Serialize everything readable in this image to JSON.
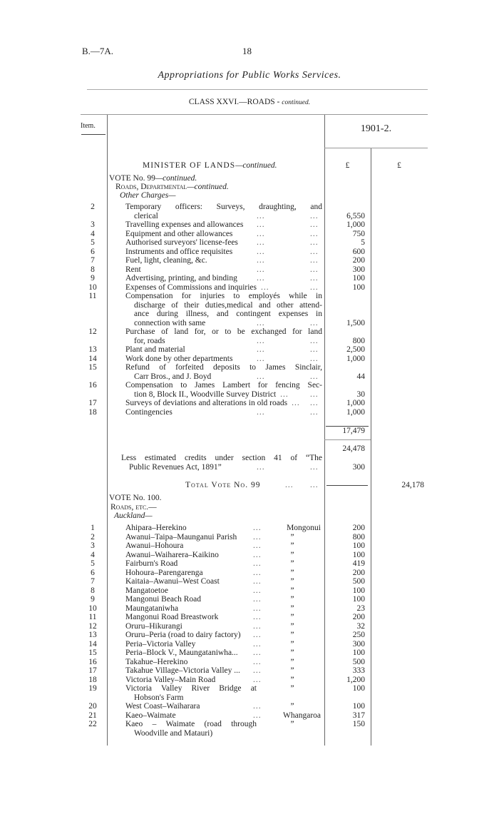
{
  "header": {
    "ref": "B.—7A.",
    "page_number": "18",
    "title": "Appropriations for Public Works Services.",
    "class_heading": "CLASS XXVI.—ROADS",
    "class_continued": "continued."
  },
  "table_header": {
    "item_label": "Item.",
    "year": "1901-2.",
    "currency_1": "£",
    "currency_2": "£"
  },
  "section": {
    "minister": "MINISTER OF LANDS",
    "minister_continued": "—continued."
  },
  "vote99": {
    "title": "VOTE No. 99",
    "title_continued": "—continued.",
    "subhead": "Roads, Departmental",
    "subhead_continued": "—continued.",
    "group": "Other Charges—",
    "items": [
      {
        "item": "2",
        "lines": [
          "Temporary officers: Surveys, draughting, and",
          "clerical"
        ],
        "amount": "6,550"
      },
      {
        "item": "3",
        "lines": [
          "Travelling expenses and allowances"
        ],
        "amount": "1,000"
      },
      {
        "item": "4",
        "lines": [
          "Equipment and other allowances"
        ],
        "amount": "750"
      },
      {
        "item": "5",
        "lines": [
          "Authorised surveyors' license-fees"
        ],
        "amount": "5"
      },
      {
        "item": "6",
        "lines": [
          "Instruments and office requisites"
        ],
        "amount": "600"
      },
      {
        "item": "7",
        "lines": [
          "Fuel, light, cleaning, &c."
        ],
        "amount": "200"
      },
      {
        "item": "8",
        "lines": [
          "Rent"
        ],
        "amount": "300"
      },
      {
        "item": "9",
        "lines": [
          "Advertising, printing, and binding"
        ],
        "amount": "100"
      },
      {
        "item": "10",
        "lines": [
          "Expenses of Commissions and inquiries"
        ],
        "amount": "100"
      },
      {
        "item": "11",
        "lines": [
          "Compensation for injuries to employés while in",
          "discharge of their duties,medical and other attend-",
          "ance during illness, and contingent expenses in",
          "connection with same"
        ],
        "amount": "1,500"
      },
      {
        "item": "12",
        "lines": [
          "Purchase of land for, or to be exchanged for land",
          "for, roads"
        ],
        "amount": "800"
      },
      {
        "item": "13",
        "lines": [
          "Plant and material"
        ],
        "amount": "2,500"
      },
      {
        "item": "14",
        "lines": [
          "Work done by other departments"
        ],
        "amount": "1,000"
      },
      {
        "item": "15",
        "lines": [
          "Refund of forfeited deposits to James Sinclair,",
          "Carr Bros., and J. Boyd"
        ],
        "amount": "44"
      },
      {
        "item": "16",
        "lines": [
          "Compensation to James Lambert for fencing Sec-",
          "tion 8, Block II., Woodville Survey District"
        ],
        "amount": "30"
      },
      {
        "item": "17",
        "lines": [
          "Surveys of deviations and alterations in old roads"
        ],
        "amount": "1,000"
      },
      {
        "item": "18",
        "lines": [
          "Contingencies"
        ],
        "amount": "1,000"
      }
    ],
    "subtotal": "17,479",
    "gross": "24,478",
    "credits_lines": [
      "Less estimated credits under section 41 of “The",
      "Public Revenues Act, 1891”"
    ],
    "credits_amount": "300",
    "total_label": "Total Vote No. 99",
    "total_amount": "24,178"
  },
  "vote100": {
    "title": "VOTE No. 100.",
    "subhead": "Roads, etc.—",
    "group": "Auckland—",
    "items": [
      {
        "item": "1",
        "lines": [
          "Ahipara–Herekino"
        ],
        "district": "Mongonui",
        "amount": "200"
      },
      {
        "item": "2",
        "lines": [
          "Awanui–Taipa–Maunganui Parish"
        ],
        "district": "”",
        "amount": "800"
      },
      {
        "item": "3",
        "lines": [
          "Awanui–Hohoura"
        ],
        "district": "”",
        "amount": "100"
      },
      {
        "item": "4",
        "lines": [
          "Awanui–Waiharera–Kaikino"
        ],
        "district": "”",
        "amount": "100"
      },
      {
        "item": "5",
        "lines": [
          "Fairburn's Road"
        ],
        "district": "”",
        "amount": "419"
      },
      {
        "item": "6",
        "lines": [
          "Hohoura–Parengarenga"
        ],
        "district": "”",
        "amount": "200"
      },
      {
        "item": "7",
        "lines": [
          "Kaitaia–Awanui–West Coast"
        ],
        "district": "”",
        "amount": "500"
      },
      {
        "item": "8",
        "lines": [
          "Mangatoetoe"
        ],
        "district": "”",
        "amount": "100"
      },
      {
        "item": "9",
        "lines": [
          "Mangonui Beach Road"
        ],
        "district": "”",
        "amount": "100"
      },
      {
        "item": "10",
        "lines": [
          "Maungataniwha"
        ],
        "district": "”",
        "amount": "23"
      },
      {
        "item": "11",
        "lines": [
          "Mangonui Road Breastwork"
        ],
        "district": "”",
        "amount": "200"
      },
      {
        "item": "12",
        "lines": [
          "Oruru–Hikurangi"
        ],
        "district": "”",
        "amount": "32"
      },
      {
        "item": "13",
        "lines": [
          "Oruru–Peria (road to dairy factory)"
        ],
        "district": "”",
        "amount": "250"
      },
      {
        "item": "14",
        "lines": [
          "Peria–Victoria Valley"
        ],
        "district": "”",
        "amount": "300"
      },
      {
        "item": "15",
        "lines": [
          "Peria–Block V., Maungataniwha..."
        ],
        "district": "”",
        "amount": "100"
      },
      {
        "item": "16",
        "lines": [
          "Takahue–Herekino"
        ],
        "district": "”",
        "amount": "500"
      },
      {
        "item": "17",
        "lines": [
          "Takahue Village–Victoria Valley ..."
        ],
        "district": "”",
        "amount": "333"
      },
      {
        "item": "18",
        "lines": [
          "Victoria Valley–Main Road"
        ],
        "district": "”",
        "amount": "1,200"
      },
      {
        "item": "19",
        "lines": [
          "Victoria Valley River Bridge at",
          "Hobson's Farm"
        ],
        "district": "”",
        "amount": "100",
        "amount_on_first": true
      },
      {
        "item": "20",
        "lines": [
          "West Coast–Waiharara"
        ],
        "district": "”",
        "amount": "100"
      },
      {
        "item": "21",
        "lines": [
          "Kaeo–Waimate"
        ],
        "district": "Whangaroa",
        "amount": "317"
      },
      {
        "item": "22",
        "lines": [
          "Kaeo – Waimate (road through",
          "Woodville and Matauri)"
        ],
        "district": "”",
        "amount": "150",
        "amount_on_first": true
      }
    ]
  }
}
